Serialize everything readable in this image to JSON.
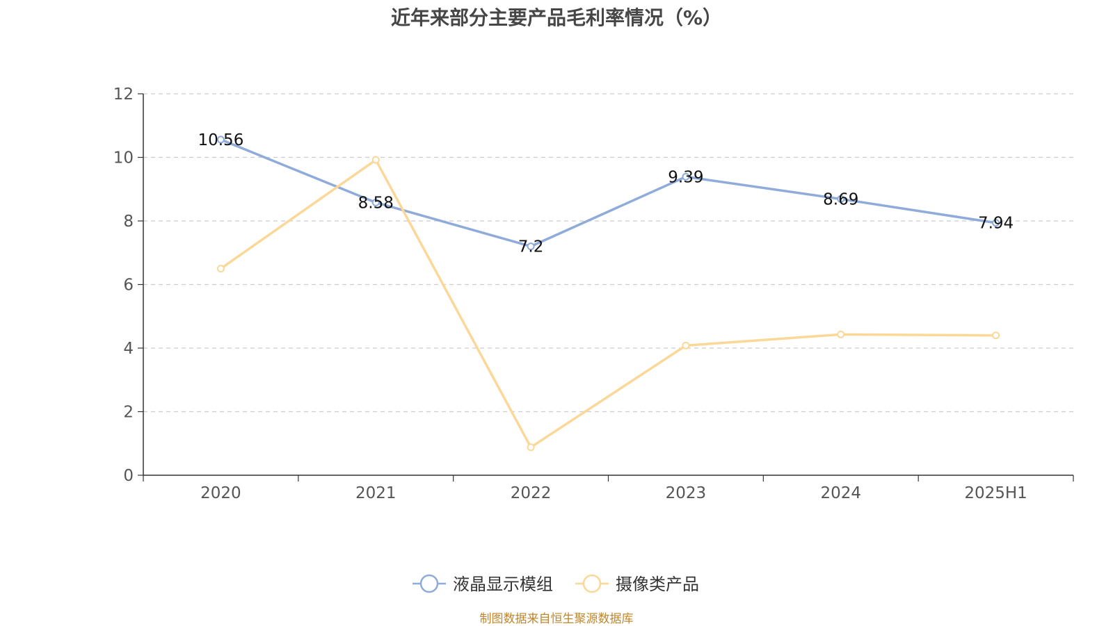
{
  "chart_data": {
    "type": "line",
    "title": "近年来部分主要产品毛利率情况（%）",
    "categories": [
      "2020",
      "2021",
      "2022",
      "2023",
      "2024",
      "2025H1"
    ],
    "ylim": [
      0,
      12
    ],
    "yticks": [
      0,
      2,
      4,
      6,
      8,
      10,
      12
    ],
    "grid": true,
    "legend_position": "bottom-center",
    "series": [
      {
        "name": "液晶显示模组",
        "color": "#8eabd9",
        "values": [
          10.56,
          8.58,
          7.2,
          9.39,
          8.69,
          7.94
        ],
        "labels": [
          "10.56",
          "8.58",
          "7.2",
          "9.39",
          "8.69",
          "7.94"
        ]
      },
      {
        "name": "摄像类产品",
        "color": "#fbd897",
        "values": [
          6.5,
          9.92,
          0.88,
          4.08,
          4.43,
          4.4
        ]
      }
    ]
  },
  "source": "制图数据来自恒生聚源数据库"
}
